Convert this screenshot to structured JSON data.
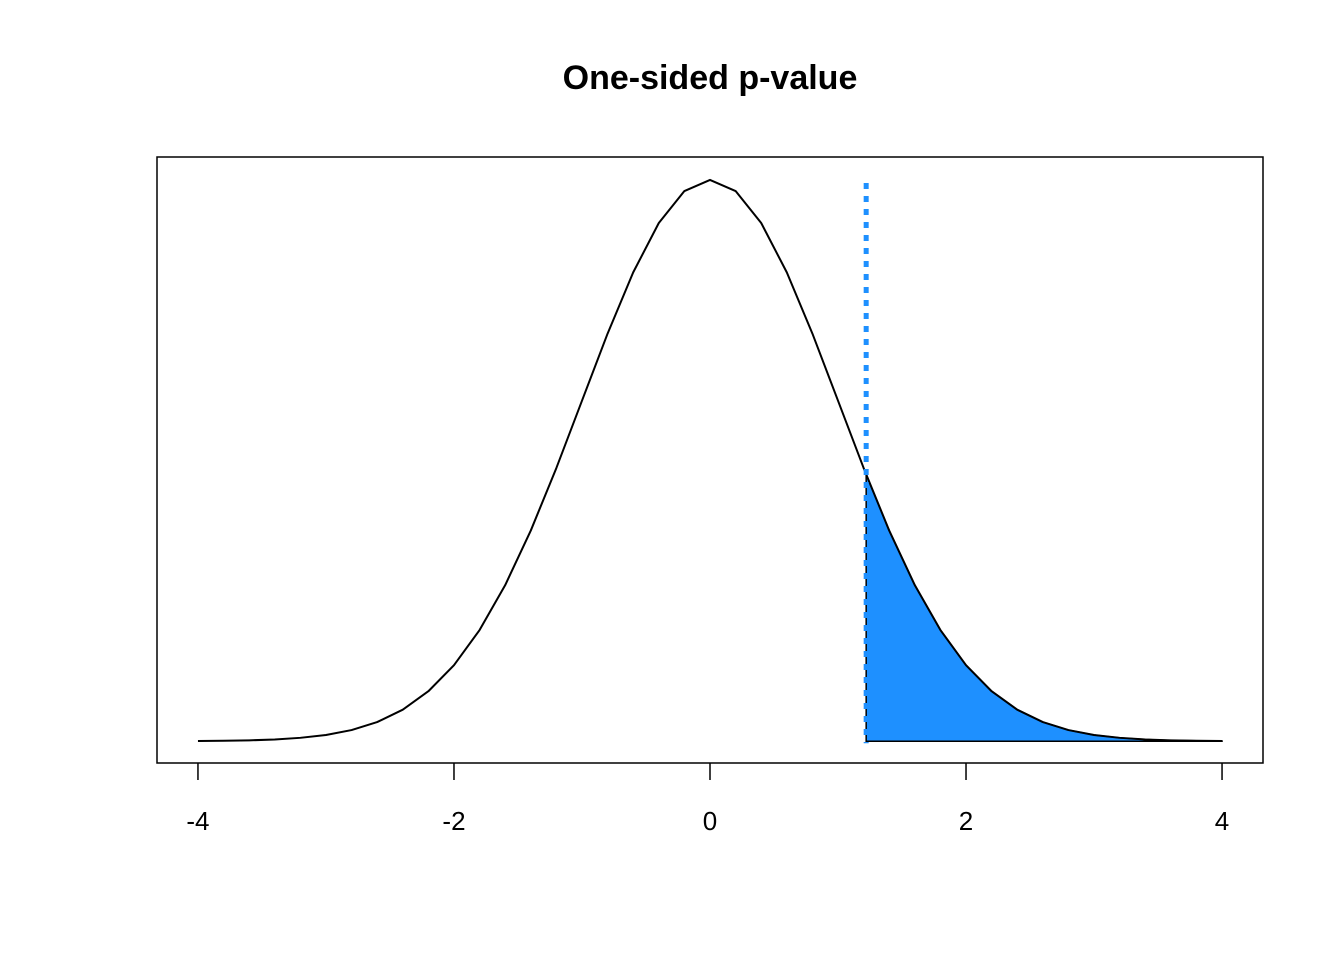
{
  "chart_data": {
    "type": "density",
    "title": "One-sided p-value",
    "xlim": [
      -4.32,
      4.32
    ],
    "ylim": [
      -0.0155,
      0.4152
    ],
    "xticks": [
      -4,
      -2,
      0,
      2,
      4
    ],
    "threshold": 1.22,
    "threshold_color": "#1e90ff",
    "series": [
      {
        "x": [
          -4,
          -3.8,
          -3.6,
          -3.4,
          -3.2,
          -3,
          -2.8,
          -2.6,
          -2.4,
          -2.2,
          -2,
          -1.8,
          -1.6,
          -1.4,
          -1.2,
          -1,
          -0.8,
          -0.6,
          -0.4,
          -0.2,
          0,
          0.2,
          0.4,
          0.6,
          0.8,
          1,
          1.2,
          1.4,
          1.6,
          1.8,
          2,
          2.2,
          2.4,
          2.6,
          2.8,
          3,
          3.2,
          3.4,
          3.6,
          3.8,
          4
        ],
        "values": [
          0.0001,
          0.0003,
          0.0006,
          0.0012,
          0.0024,
          0.0044,
          0.0079,
          0.0136,
          0.0224,
          0.0355,
          0.054,
          0.079,
          0.1109,
          0.1497,
          0.1942,
          0.242,
          0.2897,
          0.3332,
          0.3683,
          0.391,
          0.3989,
          0.391,
          0.3683,
          0.3332,
          0.2897,
          0.242,
          0.1942,
          0.1497,
          0.1109,
          0.079,
          0.054,
          0.0355,
          0.0224,
          0.0136,
          0.0079,
          0.0044,
          0.0024,
          0.0012,
          0.0006,
          0.0003,
          0.0001
        ],
        "color": "#000000"
      },
      {
        "x": [
          1.22,
          1.4,
          1.6,
          1.8,
          2,
          2.2,
          2.4,
          2.6,
          2.8,
          3,
          3.2,
          3.4,
          3.6,
          3.8,
          4
        ],
        "values": [
          0.1895,
          0.1497,
          0.1109,
          0.079,
          0.054,
          0.0355,
          0.0224,
          0.0136,
          0.0079,
          0.0044,
          0.0024,
          0.0012,
          0.0006,
          0.0003,
          0.0001
        ],
        "color": "#1e90ff",
        "fill": true
      }
    ]
  }
}
